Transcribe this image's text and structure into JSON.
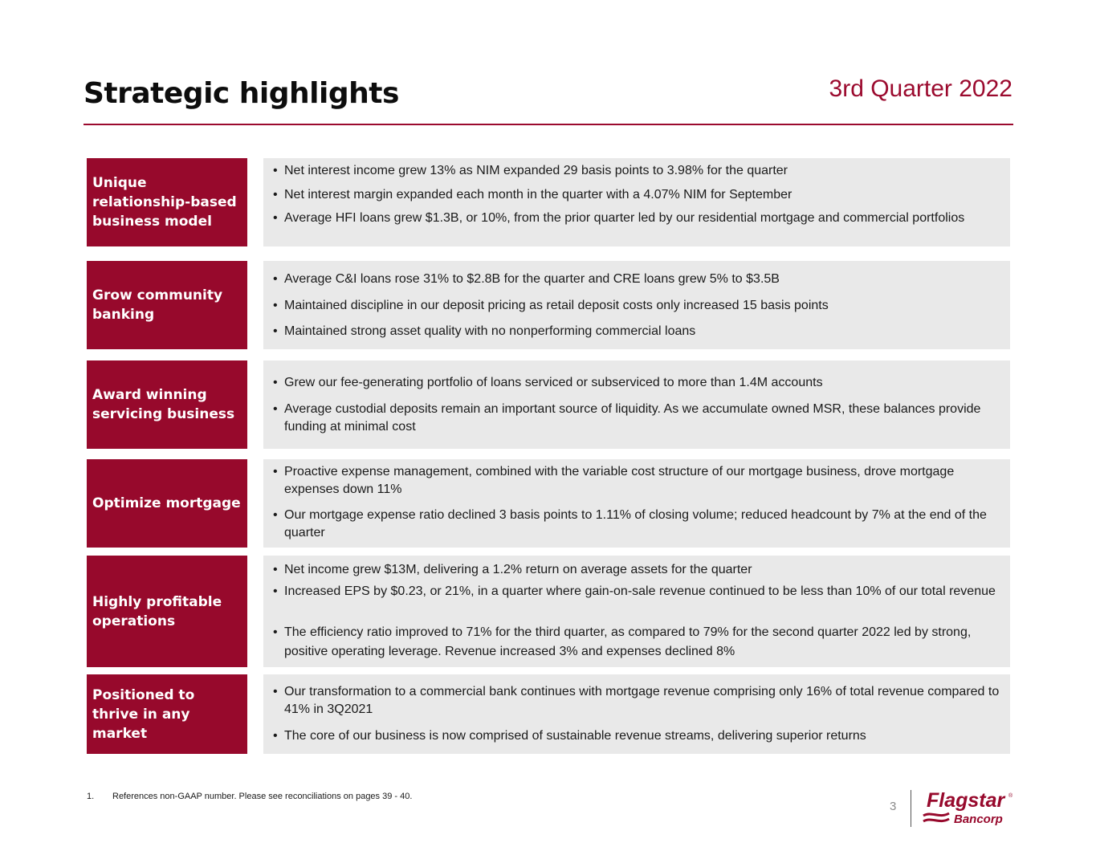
{
  "header": {
    "title": "Strategic highlights",
    "quarter": "3rd Quarter 2022"
  },
  "rows": [
    {
      "label": "Unique relationship-based business model",
      "bullets": [
        "Net interest income grew 13% as NIM expanded 29 basis points to 3.98% for the quarter",
        "Net interest margin expanded each month in the quarter with a 4.07% NIM for September",
        "Average HFI loans grew $1.3B, or 10%, from the prior quarter led by our residential mortgage and commercial portfolios"
      ]
    },
    {
      "label": "Grow community banking",
      "bullets": [
        "Average C&I loans rose 31% to $2.8B for the quarter and CRE loans grew 5% to $3.5B",
        "Maintained discipline in our deposit pricing as retail deposit costs only increased 15 basis points",
        "Maintained strong asset quality with no nonperforming commercial loans"
      ]
    },
    {
      "label": "Award winning servicing business",
      "bullets": [
        "Grew our fee-generating portfolio of loans serviced or subserviced to more than 1.4M accounts",
        "Average custodial deposits remain an important source of liquidity. As we accumulate owned MSR, these balances provide funding at minimal cost"
      ]
    },
    {
      "label": "Optimize mortgage",
      "bullets": [
        "Proactive expense management, combined with the variable cost structure of our mortgage business, drove mortgage expenses down 11%",
        "Our mortgage expense ratio declined 3 basis points to 1.11% of closing volume; reduced headcount by 7% at the end of the quarter"
      ]
    },
    {
      "label": "Highly profitable operations",
      "bullets": [
        "Net income grew $13M, delivering a 1.2% return on average assets for the quarter",
        "Increased EPS by $0.23, or 21%, in a quarter where gain-on-sale revenue continued to be less than 10% of our total revenue",
        "The efficiency ratio improved to 71% for the third quarter, as compared to 79% for the second quarter 2022 led by strong, positive operating leverage. Revenue increased 3% and expenses declined 8%"
      ]
    },
    {
      "label": "Positioned to thrive in any market",
      "bullets": [
        "Our transformation to a commercial bank continues with mortgage revenue comprising only 16% of total revenue compared to 41% in 3Q2021",
        "The core of our business is now comprised of sustainable revenue streams, delivering superior returns"
      ]
    }
  ],
  "footer": {
    "footnote_number": "1.",
    "footnote_text": "References non-GAAP number. Please see reconciliations on pages 39 - 40.",
    "page_number": "3",
    "logo_name": "Flagstar",
    "logo_sub": "Bancorp",
    "logo_mark": "®"
  },
  "colors": {
    "brand": "#97092c",
    "panel": "#e9e9e9"
  }
}
